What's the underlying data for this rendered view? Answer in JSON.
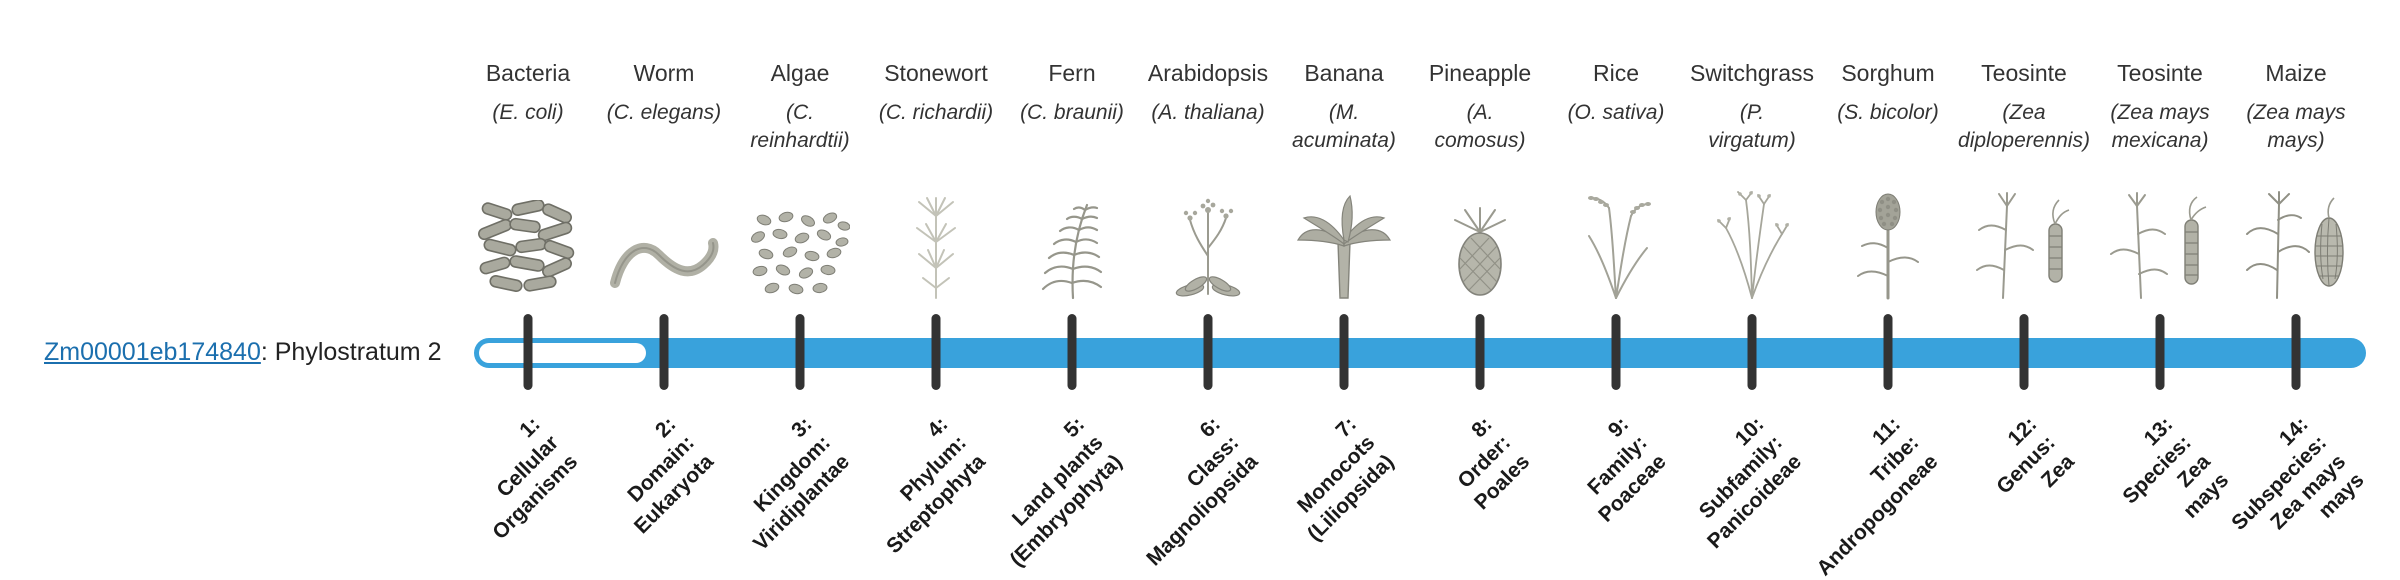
{
  "gene": {
    "id": "Zm00001eb174840",
    "suffix": ": Phylostratum 2"
  },
  "colors": {
    "bar_fill": "#39a2dc",
    "bar_unfilled": "#ffffff",
    "tick": "#333333",
    "link": "#1b6fae"
  },
  "bar": {
    "filled_from_stratum": 2,
    "total_strata": 14
  },
  "columns": [
    {
      "num": 1,
      "name": "Bacteria",
      "sci": "(E. coli)",
      "icon": "bacteria-icon",
      "stratum_label": "1:\nCellular\nOrganisms"
    },
    {
      "num": 2,
      "name": "Worm",
      "sci": "(C. elegans)",
      "icon": "worm-icon",
      "stratum_label": "2:\nDomain:\nEukaryota"
    },
    {
      "num": 3,
      "name": "Algae",
      "sci": "(C.\nreinhardtii)",
      "icon": "algae-icon",
      "stratum_label": "3:\nKingdom:\nViridiplantae"
    },
    {
      "num": 4,
      "name": "Stonewort",
      "sci": "(C. richardii)",
      "icon": "stonewort-icon",
      "stratum_label": "4:\nPhylum:\nStreptophyta"
    },
    {
      "num": 5,
      "name": "Fern",
      "sci": "(C. braunii)",
      "icon": "fern-icon",
      "stratum_label": "5:\nLand plants\n(Embryophyta)"
    },
    {
      "num": 6,
      "name": "Arabidopsis",
      "sci": "(A. thaliana)",
      "icon": "arabidopsis-icon",
      "stratum_label": "6:\nClass:\nMagnoliopsida"
    },
    {
      "num": 7,
      "name": "Banana",
      "sci": "(M.\nacuminata)",
      "icon": "banana-icon",
      "stratum_label": "7:\nMonocots\n(Liliopsida)"
    },
    {
      "num": 8,
      "name": "Pineapple",
      "sci": "(A.\ncomosus)",
      "icon": "pineapple-icon",
      "stratum_label": "8:\nOrder:\nPoales"
    },
    {
      "num": 9,
      "name": "Rice",
      "sci": "(O. sativa)",
      "icon": "rice-icon",
      "stratum_label": "9:\nFamily:\nPoaceae"
    },
    {
      "num": 10,
      "name": "Switchgrass",
      "sci": "(P.\nvirgatum)",
      "icon": "switchgrass-icon",
      "stratum_label": "10:\nSubfamily:\nPanicoideae"
    },
    {
      "num": 11,
      "name": "Sorghum",
      "sci": "(S. bicolor)",
      "icon": "sorghum-icon",
      "stratum_label": "11:\nTribe:\nAndropogoneae"
    },
    {
      "num": 12,
      "name": "Teosinte",
      "sci": "(Zea\ndiploperennis)",
      "icon": "teosinte-diploperennis-icon",
      "stratum_label": "12:\nGenus:\nZea"
    },
    {
      "num": 13,
      "name": "Teosinte",
      "sci": "(Zea mays\nmexicana)",
      "icon": "teosinte-mexicana-icon",
      "stratum_label": "13:\nSpecies:\nZea\nmays"
    },
    {
      "num": 14,
      "name": "Maize",
      "sci": "(Zea mays\nmays)",
      "icon": "maize-icon",
      "stratum_label": "14:\nSubspecies:\nZea mays\nmays"
    }
  ]
}
